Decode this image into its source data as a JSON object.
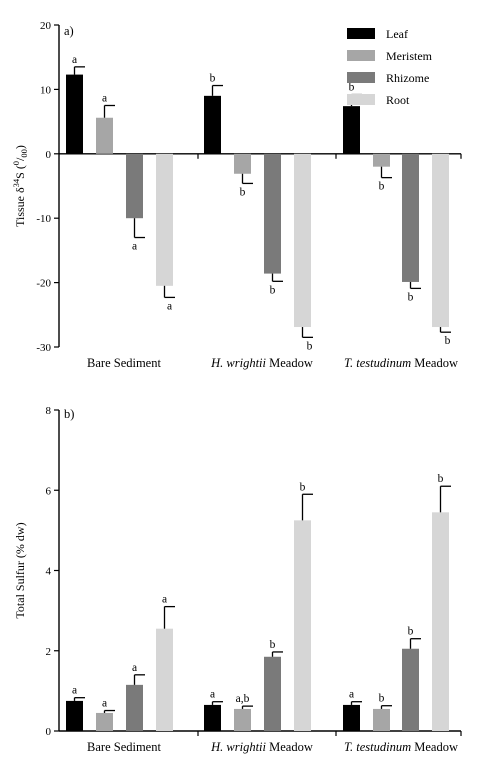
{
  "colors": {
    "Leaf": "#000000",
    "Meristem": "#a6a6a6",
    "Rhizome": "#7a7a7a",
    "Root": "#d6d6d6"
  },
  "chart_data": [
    {
      "type": "bar",
      "panel_label": "a)",
      "ylabel": "Tissue δ34S (0/00)",
      "ylim": [
        -30,
        20
      ],
      "yticks": [
        20,
        10,
        0,
        -10,
        -20,
        -30
      ],
      "legend": {
        "placement": "top-right",
        "entries": [
          "Leaf",
          "Meristem",
          "Rhizome",
          "Root"
        ]
      },
      "categories": [
        {
          "plain": "Bare Sediment",
          "italic": "",
          "suffix": ""
        },
        {
          "plain": "",
          "italic": "H. wrightii",
          "suffix": " Meadow"
        },
        {
          "plain": "",
          "italic": "T. testudinum",
          "suffix": " Meadow"
        }
      ],
      "series": [
        {
          "name": "Leaf",
          "values": [
            12.3,
            9.0,
            7.4
          ],
          "errors": [
            1.2,
            1.6,
            1.8
          ],
          "labels": [
            "a",
            "b",
            "b"
          ]
        },
        {
          "name": "Meristem",
          "values": [
            5.6,
            -3.1,
            -2.0
          ],
          "errors": [
            1.9,
            1.5,
            1.7
          ],
          "labels": [
            "a",
            "b",
            "b"
          ]
        },
        {
          "name": "Rhizome",
          "values": [
            -10.0,
            -18.6,
            -19.9
          ],
          "errors": [
            3.0,
            1.2,
            1.0
          ],
          "labels": [
            "a",
            "b",
            "b"
          ]
        },
        {
          "name": "Root",
          "values": [
            -20.5,
            -26.9,
            -26.9
          ],
          "errors": [
            1.8,
            1.6,
            0.8
          ],
          "labels": [
            "a",
            "b",
            "b"
          ]
        }
      ]
    },
    {
      "type": "bar",
      "panel_label": "b)",
      "ylabel": "Total Sulfur (% dw)",
      "ylim": [
        0,
        8
      ],
      "yticks": [
        8,
        6,
        4,
        2,
        0
      ],
      "categories": [
        {
          "plain": "Bare Sediment",
          "italic": "",
          "suffix": ""
        },
        {
          "plain": "",
          "italic": "H. wrightii",
          "suffix": " Meadow"
        },
        {
          "plain": "",
          "italic": "T. testudinum",
          "suffix": " Meadow"
        }
      ],
      "series": [
        {
          "name": "Leaf",
          "values": [
            0.75,
            0.65,
            0.65
          ],
          "errors": [
            0.08,
            0.08,
            0.08
          ],
          "labels": [
            "a",
            "a",
            "a"
          ]
        },
        {
          "name": "Meristem",
          "values": [
            0.45,
            0.55,
            0.55
          ],
          "errors": [
            0.06,
            0.07,
            0.08
          ],
          "labels": [
            "a",
            "a,b",
            "b"
          ]
        },
        {
          "name": "Rhizome",
          "values": [
            1.15,
            1.85,
            2.05
          ],
          "errors": [
            0.25,
            0.12,
            0.25
          ],
          "labels": [
            "a",
            "b",
            "b"
          ]
        },
        {
          "name": "Root",
          "values": [
            2.55,
            5.25,
            5.45
          ],
          "errors": [
            0.55,
            0.65,
            0.65
          ],
          "labels": [
            "a",
            "b",
            "b"
          ]
        }
      ]
    }
  ]
}
